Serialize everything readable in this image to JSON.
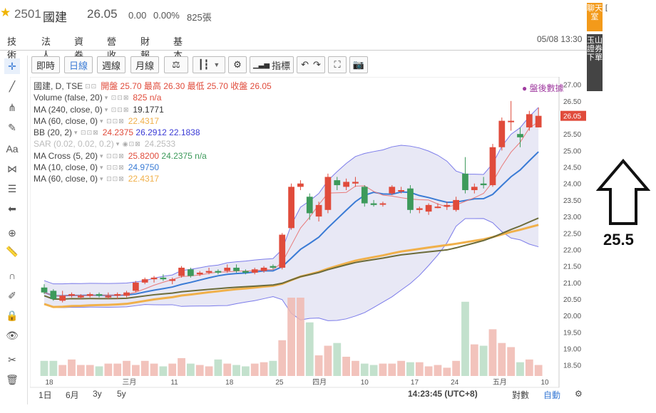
{
  "header": {
    "code": "2501",
    "name": "國建",
    "price": "26.05",
    "change": "0.00",
    "change_pct": "0.00%",
    "volume": "825張",
    "datetime": "05/08 13:30"
  },
  "tabs": [
    "技術",
    "法人",
    "資券",
    "營收",
    "財報",
    "基本"
  ],
  "toolbar": {
    "b1": "即時",
    "b2": "日線",
    "b3": "週線",
    "b4": "月線",
    "b5": "指標"
  },
  "legend": {
    "main": "國建, D, TSE",
    "ohlc": "開盤 25.70 最高 26.30 最低 25.70 收盤 26.05",
    "volume_label": "Volume (false, 20)",
    "volume_val": "825 n/a",
    "ma240_label": "MA (240, close, 0)",
    "ma240_val": "19.1771",
    "ma60_label": "MA (60, close, 0)",
    "ma60_val": "22.4317",
    "bb_label": "BB (20, 2)",
    "bb_v1": "24.2375",
    "bb_v2": "26.2912",
    "bb_v3": "22.1838",
    "sar_label": "SAR (0.02, 0.02, 0.2)",
    "sar_val": "24.2533",
    "mac_label": "MA Cross (5, 20)",
    "mac_v1": "25.8200",
    "mac_v2": "24.2375",
    "mac_v3": "n/a",
    "ma10_label": "MA (10, close, 0)",
    "ma10_val": "24.9750",
    "ma60b_label": "MA (60, close, 0)",
    "ma60b_val": "22.4317",
    "after_hours": "● 盤後數據"
  },
  "y_axis": [
    "27.00",
    "26.50",
    "26.05",
    "25.50",
    "25.00",
    "24.50",
    "24.00",
    "23.50",
    "23.00",
    "22.50",
    "22.00",
    "21.50",
    "21.00",
    "20.50",
    "20.00",
    "19.50",
    "19.00",
    "18.50"
  ],
  "x_axis": [
    "18",
    "三月",
    "11",
    "18",
    "25",
    "四月",
    "10",
    "17",
    "24",
    "五月",
    "10"
  ],
  "bottom": {
    "ranges": [
      "1日",
      "6月",
      "3y",
      "5y"
    ],
    "clock": "14:23:45 (UTC+8)",
    "opt1": "對數",
    "opt2": "自動"
  },
  "side": {
    "chat": "聊天室",
    "order": "玉山證券下單",
    "edge": "["
  },
  "annotation": "25.5",
  "colors": {
    "up": "#e04b3b",
    "down": "#3d9a5b",
    "ma_blue": "#3a7bd5",
    "ma_olive": "#6b6b3a",
    "ma_orange": "#f0b04a",
    "bb_fill": "#e0e0f2",
    "bb_line": "#7b7bea"
  },
  "chart_data": {
    "type": "candlestick",
    "ohlc": [
      [
        20.85,
        20.95,
        20.65,
        20.7
      ],
      [
        20.75,
        20.8,
        20.45,
        20.5
      ],
      [
        20.45,
        20.75,
        20.4,
        20.6
      ],
      [
        20.6,
        20.7,
        20.55,
        20.65
      ],
      [
        20.55,
        20.65,
        20.5,
        20.6
      ],
      [
        20.6,
        20.7,
        20.55,
        20.65
      ],
      [
        20.65,
        20.7,
        20.55,
        20.6
      ],
      [
        20.55,
        20.7,
        20.5,
        20.6
      ],
      [
        20.6,
        20.7,
        20.5,
        20.65
      ],
      [
        20.6,
        20.75,
        20.55,
        20.7
      ],
      [
        20.75,
        21.05,
        20.7,
        21.0
      ],
      [
        21.0,
        21.15,
        20.95,
        21.1
      ],
      [
        21.1,
        21.2,
        21.0,
        21.15
      ],
      [
        21.15,
        21.25,
        21.05,
        21.1
      ],
      [
        21.05,
        21.15,
        20.95,
        21.1
      ],
      [
        21.2,
        21.5,
        21.15,
        21.45
      ],
      [
        21.4,
        21.45,
        21.15,
        21.2
      ],
      [
        21.25,
        21.35,
        21.2,
        21.3
      ],
      [
        21.3,
        21.45,
        21.25,
        21.35
      ],
      [
        21.35,
        21.4,
        21.25,
        21.3
      ],
      [
        21.35,
        21.55,
        21.3,
        21.45
      ],
      [
        21.45,
        21.55,
        21.3,
        21.35
      ],
      [
        21.35,
        21.4,
        21.25,
        21.3
      ],
      [
        21.3,
        21.45,
        21.25,
        21.4
      ],
      [
        21.35,
        21.5,
        21.3,
        21.45
      ],
      [
        21.5,
        21.55,
        21.4,
        21.45
      ],
      [
        21.45,
        22.5,
        21.4,
        22.45
      ],
      [
        22.65,
        24.0,
        22.6,
        23.9
      ],
      [
        23.9,
        24.1,
        23.8,
        24.0
      ],
      [
        23.6,
        23.7,
        22.9,
        23.1
      ],
      [
        23.0,
        23.45,
        22.85,
        23.35
      ],
      [
        23.2,
        24.3,
        23.1,
        24.2
      ],
      [
        24.1,
        24.2,
        23.8,
        23.95
      ],
      [
        23.9,
        24.15,
        23.8,
        24.05
      ],
      [
        24.0,
        24.2,
        23.9,
        24.05
      ],
      [
        23.9,
        23.95,
        23.3,
        23.4
      ],
      [
        23.4,
        23.5,
        23.3,
        23.35
      ],
      [
        23.4,
        23.45,
        23.3,
        23.4
      ],
      [
        23.7,
        23.95,
        23.65,
        23.9
      ],
      [
        23.8,
        23.9,
        23.7,
        23.8
      ],
      [
        23.85,
        23.95,
        23.1,
        23.2
      ],
      [
        23.2,
        23.3,
        23.1,
        23.25
      ],
      [
        23.15,
        23.4,
        23.05,
        23.35
      ],
      [
        23.3,
        23.4,
        23.25,
        23.3
      ],
      [
        23.3,
        23.45,
        23.2,
        23.35
      ],
      [
        23.2,
        23.6,
        23.15,
        23.5
      ],
      [
        24.3,
        24.8,
        23.7,
        23.8
      ],
      [
        23.8,
        24.0,
        23.7,
        23.9
      ],
      [
        24.0,
        24.2,
        23.85,
        23.95
      ],
      [
        23.95,
        25.2,
        23.9,
        25.1
      ],
      [
        25.1,
        26.0,
        25.0,
        25.9
      ],
      [
        25.9,
        26.5,
        25.6,
        25.9
      ],
      [
        25.5,
        25.7,
        25.1,
        25.4
      ],
      [
        25.7,
        26.2,
        25.6,
        26.1
      ],
      [
        25.7,
        26.3,
        25.7,
        26.05
      ]
    ],
    "volume": [
      1.1,
      1.1,
      0.8,
      1.2,
      0.8,
      0.8,
      0.7,
      0.9,
      0.9,
      1.1,
      0.8,
      1.1,
      0.9,
      0.7,
      0.9,
      1.3,
      0.9,
      0.8,
      0.7,
      1.2,
      0.9,
      0.8,
      0.7,
      0.9,
      1.0,
      1.1,
      2.6,
      5.7,
      5.7,
      3.9,
      1.5,
      2.2,
      2.4,
      1.4,
      1.1,
      0.9,
      0.8,
      0.9,
      0.9,
      1.1,
      1.0,
      1.0,
      0.7,
      0.8,
      0.6,
      1.1,
      5.4,
      2.3,
      2.2,
      3.4,
      2.4,
      2.1,
      1.0,
      1.2,
      0.8
    ],
    "ylim": [
      18.3,
      27.1
    ]
  }
}
